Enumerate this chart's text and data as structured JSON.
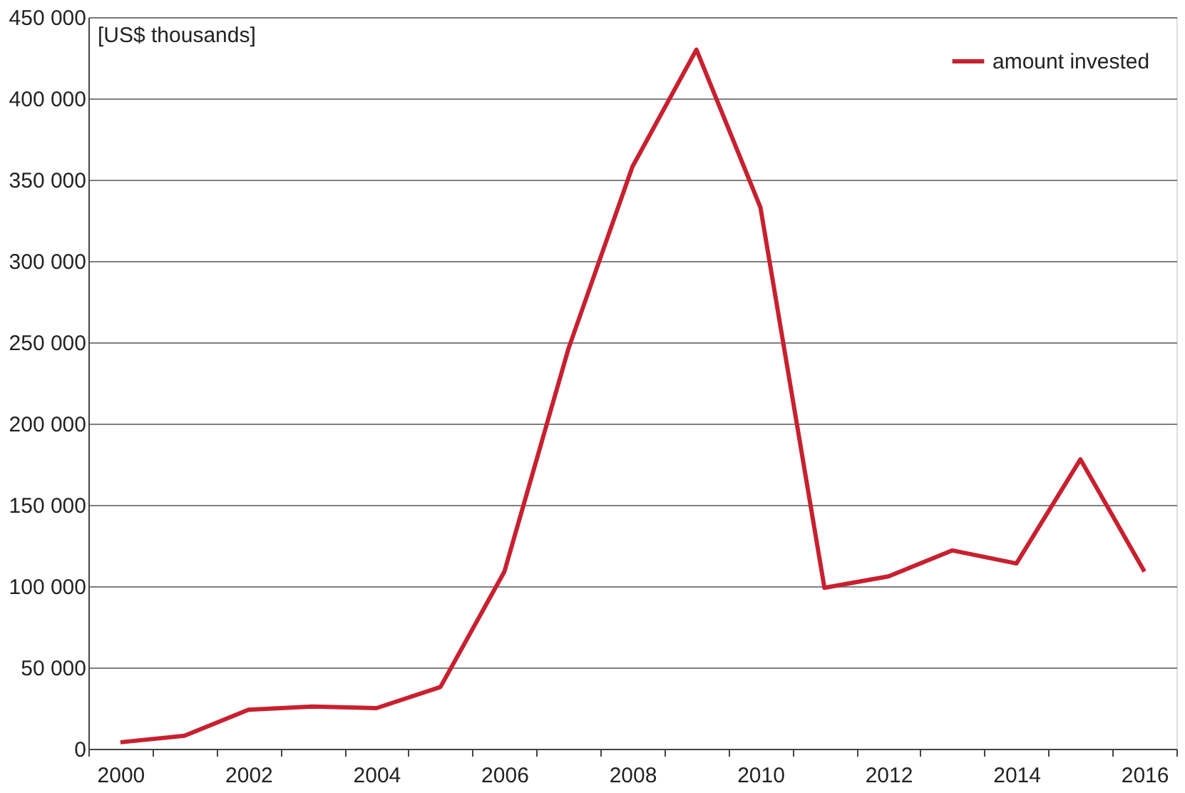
{
  "chart_data": {
    "type": "line",
    "ylabel": "[US$ thousands]",
    "categories": [
      "2000",
      null,
      "2002",
      null,
      "2004",
      null,
      "2006",
      null,
      "2008",
      null,
      "2010",
      null,
      "2012",
      null,
      "2014",
      null,
      "2016"
    ],
    "series": [
      {
        "name": "amount invested",
        "color": "#c8202f",
        "values": [
          4000,
          8000,
          24000,
          26000,
          25000,
          38000,
          109000,
          246000,
          358000,
          430000,
          333000,
          99000,
          106000,
          122000,
          114000,
          178000,
          109000
        ]
      }
    ],
    "ylim": [
      0,
      450000
    ],
    "yticks": [
      0,
      {
        "value": 50000,
        "label": "50 000"
      },
      {
        "value": 100000,
        "label": "100 000"
      },
      {
        "value": 150000,
        "label": "150 000"
      },
      {
        "value": 200000,
        "label": "200 000"
      },
      {
        "value": 250000,
        "label": "250 000"
      },
      {
        "value": 300000,
        "label": "300 000"
      },
      {
        "value": 350000,
        "label": "350 000"
      },
      {
        "value": 400000,
        "label": "400 000"
      },
      {
        "value": 450000,
        "label": "450 000"
      }
    ],
    "grid": "y",
    "legend": "top right",
    "marker": "none",
    "line_style": "solid"
  }
}
